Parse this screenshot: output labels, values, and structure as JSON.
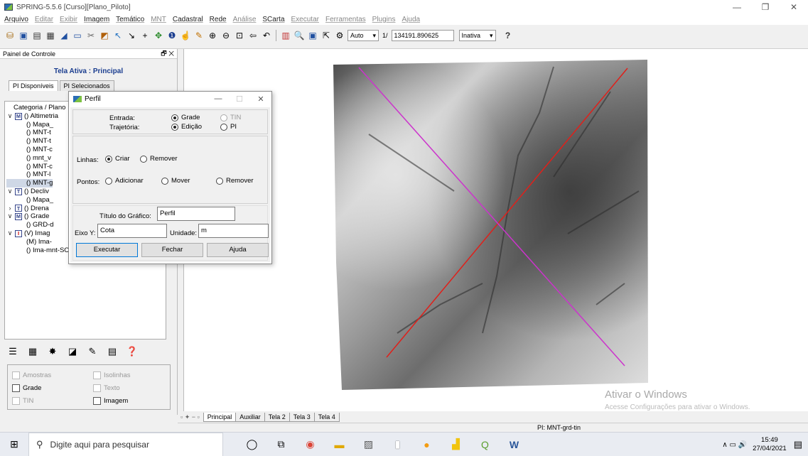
{
  "window": {
    "title": "SPRING-5.5.6 [Curso][Plano_Piloto]",
    "controls": [
      "—",
      "❐",
      "✕"
    ]
  },
  "menu": [
    {
      "label": "Arquivo",
      "enabled": true
    },
    {
      "label": "Editar",
      "enabled": false
    },
    {
      "label": "Exibir",
      "enabled": false
    },
    {
      "label": "Imagem",
      "enabled": true
    },
    {
      "label": "Temático",
      "enabled": true
    },
    {
      "label": "MNT",
      "enabled": false
    },
    {
      "label": "Cadastral",
      "enabled": true
    },
    {
      "label": "Rede",
      "enabled": true
    },
    {
      "label": "Análise",
      "enabled": false
    },
    {
      "label": "SCarta",
      "enabled": true
    },
    {
      "label": "Executar",
      "enabled": false
    },
    {
      "label": "Ferramentas",
      "enabled": false
    },
    {
      "label": "Plugins",
      "enabled": false
    },
    {
      "label": "Ajuda",
      "enabled": false
    }
  ],
  "toolbar": {
    "zoom_mode": "Auto",
    "scale_prefix": "1/",
    "scale_value": "134191.890625",
    "status_select": "Inativa",
    "help_glyph": "?"
  },
  "panel": {
    "title": "Painel de Controle",
    "controls": "🗗 ✕",
    "active_screen": "Tela Ativa : Principal",
    "tabs": [
      "PI Disponíveis",
      "PI Selecionados"
    ],
    "tree": [
      {
        "expand": "",
        "cat": "",
        "label": "Categoria / Plano"
      },
      {
        "expand": "∨",
        "cat": "M",
        "label": "() Altimetria"
      },
      {
        "expand": "",
        "cat": "",
        "label": "() Mapa_",
        "indent": true
      },
      {
        "expand": "",
        "cat": "",
        "label": "() MNT-t",
        "indent": true
      },
      {
        "expand": "",
        "cat": "",
        "label": "() MNT-t",
        "indent": true
      },
      {
        "expand": "",
        "cat": "",
        "label": "() MNT-c",
        "indent": true
      },
      {
        "expand": "",
        "cat": "",
        "label": "() mnt_v",
        "indent": true
      },
      {
        "expand": "",
        "cat": "",
        "label": "() MNT-c",
        "indent": true
      },
      {
        "expand": "",
        "cat": "",
        "label": "() MNT-l",
        "indent": true
      },
      {
        "expand": "",
        "cat": "",
        "label": "() MNT-g",
        "indent": true,
        "selected": true
      },
      {
        "expand": "∨",
        "cat": "T",
        "label": "() Decliv"
      },
      {
        "expand": "",
        "cat": "",
        "label": "() Mapa_",
        "indent": true
      },
      {
        "expand": "›",
        "cat": "T",
        "label": "() Drena"
      },
      {
        "expand": "∨",
        "cat": "M",
        "label": "() Grade"
      },
      {
        "expand": "",
        "cat": "",
        "label": "() GRD-d",
        "indent": true
      },
      {
        "expand": "∨",
        "cat": "I",
        "label": "(V) Imag",
        "red": true
      },
      {
        "expand": "",
        "cat": "",
        "label": "(M) Ima-",
        "indent": true
      },
      {
        "expand": "",
        "cat": "",
        "label": "() Ima-mnt-SOM",
        "indent": true
      }
    ],
    "tool_icons": [
      "list-icon",
      "grid-icon",
      "layers-icon",
      "chart-icon",
      "pencil-icon",
      "table-icon",
      "help-icon"
    ],
    "tool_glyphs": [
      "☰",
      "▦",
      "✸",
      "◪",
      "✎",
      "▤",
      "❓"
    ],
    "checks": [
      {
        "label": "Amostras",
        "enabled": false
      },
      {
        "label": "Isolinhas",
        "enabled": false
      },
      {
        "label": "Grade",
        "enabled": true
      },
      {
        "label": "Texto",
        "enabled": false
      },
      {
        "label": "TIN",
        "enabled": false
      },
      {
        "label": "Imagem",
        "enabled": true
      }
    ]
  },
  "dialog": {
    "title": "Perfil",
    "controls": [
      "—",
      "☐",
      "✕"
    ],
    "entrada_label": "Entrada:",
    "entrada_opts": [
      "Grade",
      "TIN"
    ],
    "trajetoria_label": "Trajetória:",
    "trajetoria_opts": [
      "Edição",
      "PI"
    ],
    "linhas_label": "Linhas:",
    "linhas_opts": [
      "Criar",
      "Remover"
    ],
    "pontos_label": "Pontos:",
    "pontos_opts": [
      "Adicionar",
      "Mover",
      "Remover"
    ],
    "titulo_label": "Título do Gráfico:",
    "titulo_value": "Perfil",
    "eixo_label": "Eixo Y:",
    "eixo_value": "Cota",
    "unidade_label": "Unidade:",
    "unidade_value": "m",
    "buttons": [
      "Executar",
      "Fechar",
      "Ajuda"
    ]
  },
  "canvas": {
    "line_colors": {
      "profile_1": "#e0201a",
      "profile_2": "#cc33cc"
    },
    "watermark_title": "Ativar o Windows",
    "watermark_sub": "Acesse Configurações para ativar o Windows."
  },
  "screen_tabs": {
    "nav": "▫ ✦ − ▫",
    "tabs": [
      "Principal",
      "Auxiliar",
      "Tela 2",
      "Tela 3",
      "Tela 4"
    ]
  },
  "status": {
    "pi": "PI: MNT-grd-tin"
  },
  "taskbar": {
    "search_placeholder": "Digite aqui para pesquisar",
    "time": "15:49",
    "date": "27/04/2021",
    "tray_glyphs": "∧ ▭ 🔊"
  }
}
